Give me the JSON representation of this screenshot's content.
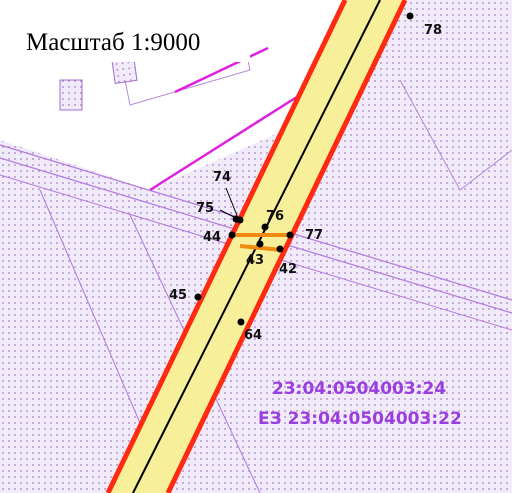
{
  "scale_label": "Масштаб 1:9000",
  "points": [
    {
      "label": "78"
    },
    {
      "label": "74"
    },
    {
      "label": "75"
    },
    {
      "label": "76"
    },
    {
      "label": "77"
    },
    {
      "label": "44"
    },
    {
      "label": "43"
    },
    {
      "label": "42"
    },
    {
      "label": "45"
    },
    {
      "label": "64"
    }
  ],
  "parcels": [
    {
      "label": "23:04:0504003:24"
    },
    {
      "label": "ЕЗ 23:04:0504003:22"
    }
  ]
}
